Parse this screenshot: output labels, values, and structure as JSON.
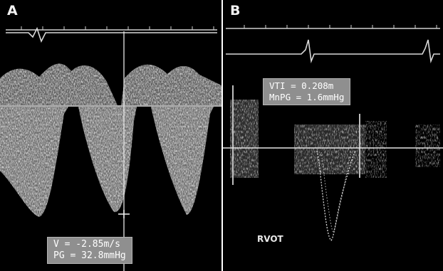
{
  "panels": {
    "a": {
      "letter": "A",
      "readout": {
        "line1": "V = -2.85m/s",
        "line2": "PG = 32.8mmHg"
      }
    },
    "b": {
      "letter": "B",
      "readout": {
        "line1": "VTI = 0.208m",
        "line2": "MnPG = 1.6mmHg"
      },
      "region_label": "RVOT"
    }
  },
  "colors": {
    "background": "#000000",
    "trace": "#e0e0e0",
    "readout_box": "#8f8f8f"
  }
}
